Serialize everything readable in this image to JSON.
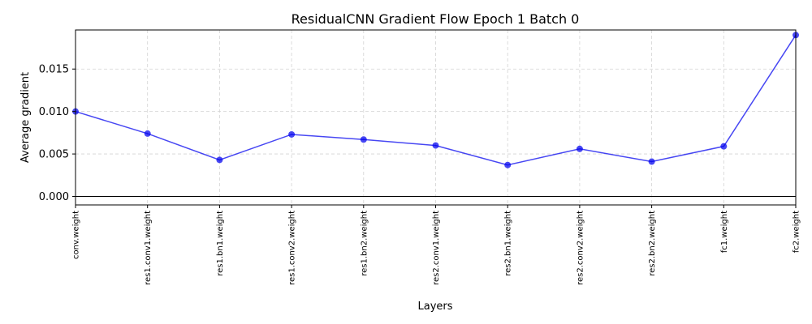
{
  "chart_data": {
    "type": "line",
    "title": "ResidualCNN Gradient Flow Epoch 1 Batch 0",
    "xlabel": "Layers",
    "ylabel": "Average gradient",
    "categories": [
      "conv.weight",
      "res1.conv1.weight",
      "res1.bn1.weight",
      "res1.conv2.weight",
      "res1.bn2.weight",
      "res2.conv1.weight",
      "res2.bn1.weight",
      "res2.conv2.weight",
      "res2.bn2.weight",
      "fc1.weight",
      "fc2.weight"
    ],
    "series": [
      {
        "values": [
          0.01,
          0.0074,
          0.0043,
          0.0073,
          0.0067,
          0.006,
          0.0037,
          0.0056,
          0.0041,
          0.0059,
          0.019
        ],
        "color": "#0000ee",
        "marker": "circle"
      }
    ],
    "ylim": [
      -0.001,
      0.0196
    ],
    "yticks": [
      "0.000",
      "0.005",
      "0.010",
      "0.015"
    ],
    "ytick_values": [
      0.0,
      0.005,
      0.01,
      0.015
    ],
    "grid": true,
    "zero_line": true
  }
}
